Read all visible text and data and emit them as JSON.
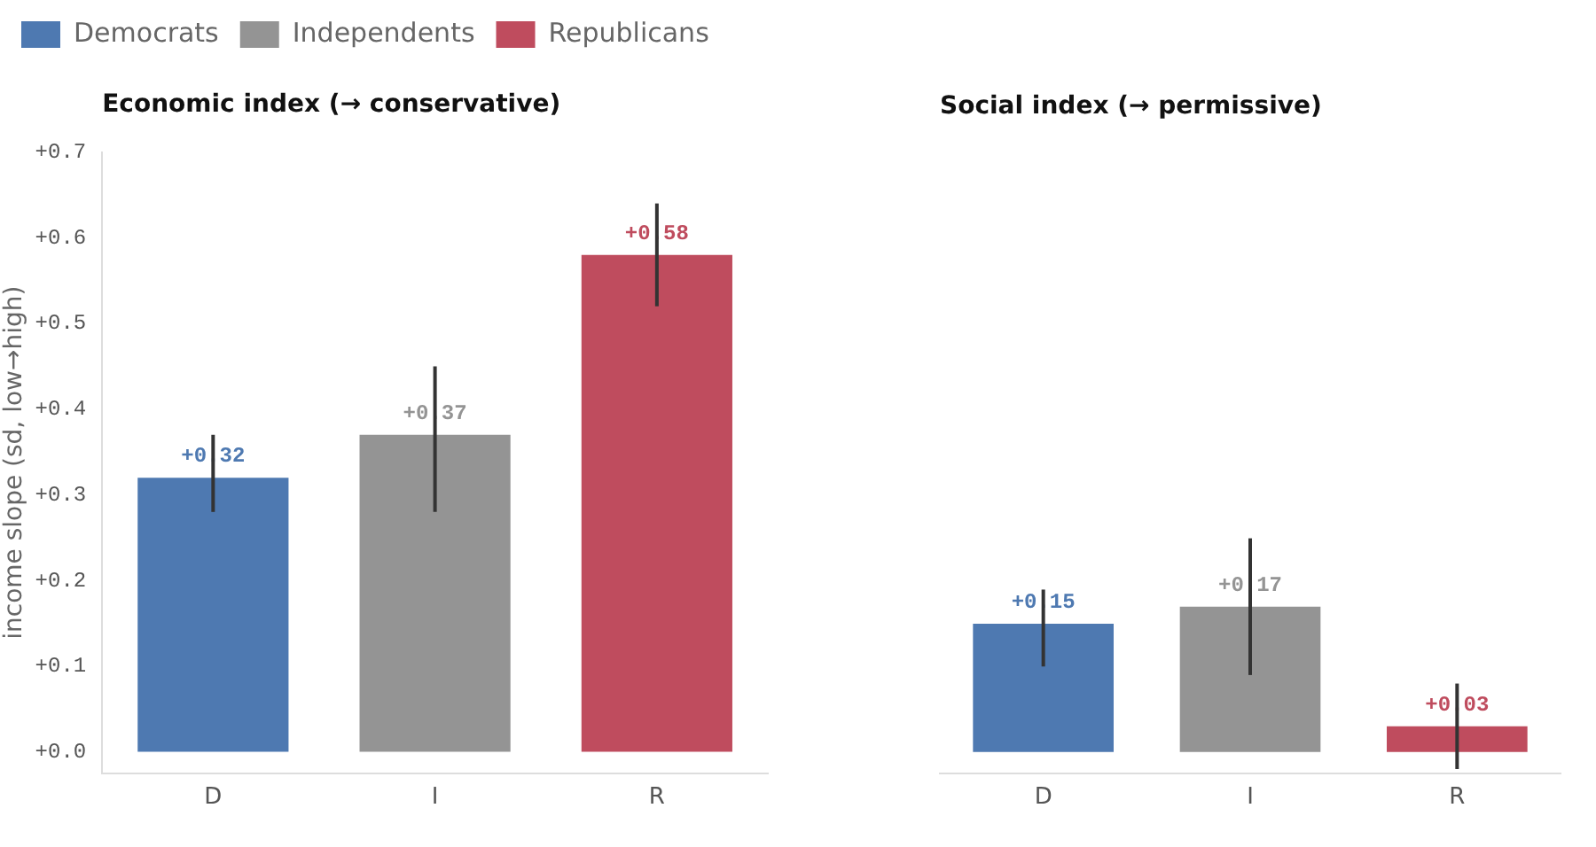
{
  "chart_data": [
    {
      "type": "bar",
      "title": "Economic index (→ conservative)",
      "ylabel": "income slope (sd, low→high)",
      "categories": [
        "D",
        "I",
        "R"
      ],
      "series": [
        {
          "name": "Democrats",
          "color": "#4e79b1",
          "values": [
            0.32,
            null,
            null
          ],
          "errors": [
            [
              0.28,
              0.37
            ],
            null,
            null
          ],
          "value_labels": [
            "+0.32",
            null,
            null
          ]
        },
        {
          "name": "Independents",
          "color": "#949494",
          "values": [
            null,
            0.37,
            null
          ],
          "errors": [
            null,
            [
              0.28,
              0.45
            ],
            null
          ],
          "value_labels": [
            null,
            "+0.37",
            null
          ]
        },
        {
          "name": "Republicans",
          "color": "#bf4c5e",
          "values": [
            null,
            null,
            0.58
          ],
          "errors": [
            null,
            null,
            [
              0.52,
              0.64
            ]
          ],
          "value_labels": [
            null,
            null,
            "+0.58"
          ]
        }
      ],
      "ylim": [
        -0.025,
        0.7
      ],
      "yticks": [
        {
          "value": 0,
          "label": "+0.0"
        },
        {
          "value": 0.1,
          "label": "+0.1"
        },
        {
          "value": 0.2,
          "label": "+0.2"
        },
        {
          "value": 0.3,
          "label": "+0.3"
        },
        {
          "value": 0.4,
          "label": "+0.4"
        },
        {
          "value": 0.5,
          "label": "+0.5"
        },
        {
          "value": 0.6,
          "label": "+0.6"
        },
        {
          "value": 0.7,
          "label": "+0.7"
        }
      ],
      "legend": "top left"
    },
    {
      "type": "bar",
      "title": "Social index (→ permissive)",
      "categories": [
        "D",
        "I",
        "R"
      ],
      "series": [
        {
          "color": "#4e79b1",
          "values": [
            0.15,
            null,
            null
          ],
          "errors": [
            [
              0.1,
              0.19
            ],
            null,
            null
          ],
          "value_labels": [
            "+0.15",
            null,
            null
          ]
        },
        {
          "color": "#949494",
          "values": [
            null,
            0.17,
            null
          ],
          "errors": [
            null,
            [
              0.09,
              0.25
            ],
            null
          ],
          "value_labels": [
            null,
            "+0.17",
            null
          ]
        },
        {
          "color": "#bf4c5e",
          "values": [
            null,
            null,
            0.03
          ],
          "errors": [
            null,
            null,
            [
              -0.02,
              0.08
            ]
          ],
          "value_labels": [
            null,
            null,
            "+0.03"
          ]
        }
      ],
      "ylim": [
        -0.025,
        0.7
      ],
      "tick_labels": "x"
    }
  ]
}
